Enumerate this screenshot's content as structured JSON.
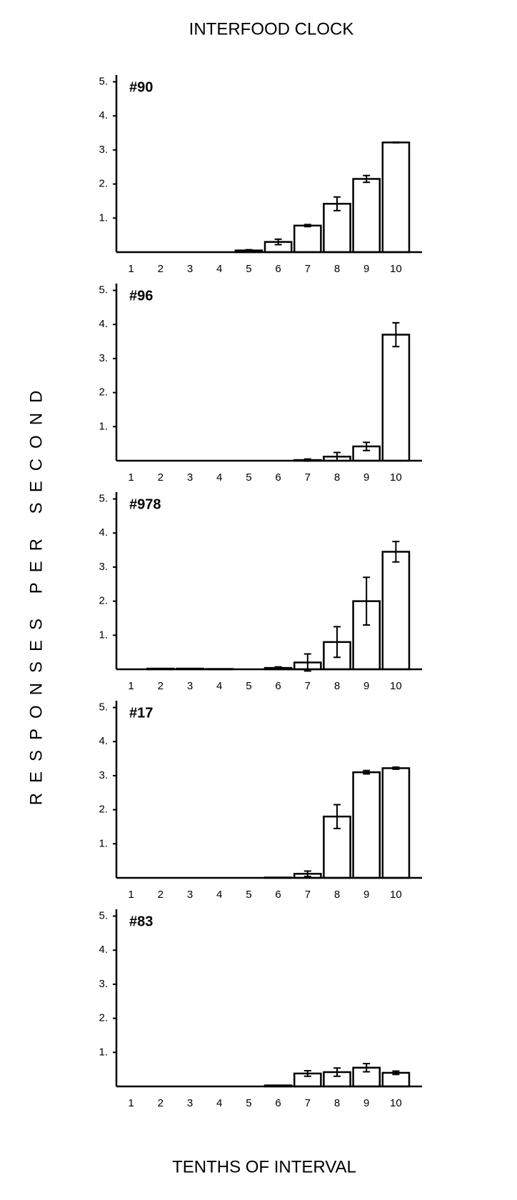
{
  "title": "INTERFOOD CLOCK",
  "ylabel": "RESPONSES PER SECOND",
  "xlabel": "TENTHS OF INTERVAL",
  "chart_data": [
    {
      "type": "bar",
      "label": "#90",
      "categories": [
        "1",
        "2",
        "3",
        "4",
        "5",
        "6",
        "7",
        "8",
        "9",
        "10"
      ],
      "values": [
        0,
        0,
        0,
        0,
        0.05,
        0.3,
        0.78,
        1.42,
        2.15,
        3.22
      ],
      "errors": [
        0,
        0,
        0,
        0,
        0.02,
        0.08,
        0.03,
        0.2,
        0.1,
        0.01
      ],
      "ylim": [
        0,
        5.2
      ],
      "yticks": [
        {
          "value": 1,
          "label": "1."
        },
        {
          "value": 2,
          "label": "2."
        },
        {
          "value": 3,
          "label": "3."
        },
        {
          "value": 4,
          "label": "4."
        },
        {
          "value": 5,
          "label": "5."
        }
      ]
    },
    {
      "type": "bar",
      "label": "#96",
      "categories": [
        "1",
        "2",
        "3",
        "4",
        "5",
        "6",
        "7",
        "8",
        "9",
        "10"
      ],
      "values": [
        0,
        0,
        0,
        0,
        0,
        0,
        0.02,
        0.12,
        0.42,
        3.7
      ],
      "errors": [
        0,
        0,
        0,
        0,
        0,
        0,
        0.03,
        0.12,
        0.12,
        0.35
      ],
      "ylim": [
        0,
        5.2
      ],
      "yticks": [
        {
          "value": 1,
          "label": "1."
        },
        {
          "value": 2,
          "label": "2."
        },
        {
          "value": 3,
          "label": "3."
        },
        {
          "value": 4,
          "label": "4."
        },
        {
          "value": 5,
          "label": "5."
        }
      ]
    },
    {
      "type": "bar",
      "label": "#978",
      "categories": [
        "1",
        "2",
        "3",
        "4",
        "5",
        "6",
        "7",
        "8",
        "9",
        "10"
      ],
      "values": [
        0,
        0.02,
        0.02,
        0.01,
        0,
        0.04,
        0.2,
        0.8,
        2.0,
        3.45
      ],
      "errors": [
        0,
        0,
        0,
        0,
        0,
        0.03,
        0.25,
        0.45,
        0.7,
        0.3
      ],
      "ylim": [
        0,
        5.2
      ],
      "yticks": [
        {
          "value": 1,
          "label": "1."
        },
        {
          "value": 2,
          "label": "2."
        },
        {
          "value": 3,
          "label": "3."
        },
        {
          "value": 4,
          "label": "4."
        },
        {
          "value": 5,
          "label": "5."
        }
      ]
    },
    {
      "type": "bar",
      "label": "#17",
      "categories": [
        "1",
        "2",
        "3",
        "4",
        "5",
        "6",
        "7",
        "8",
        "9",
        "10"
      ],
      "values": [
        0,
        0,
        0,
        0,
        0,
        0.01,
        0.12,
        1.8,
        3.1,
        3.22
      ],
      "errors": [
        0,
        0,
        0,
        0,
        0,
        0,
        0.08,
        0.35,
        0.05,
        0.03
      ],
      "ylim": [
        0,
        5.2
      ],
      "yticks": [
        {
          "value": 1,
          "label": "1."
        },
        {
          "value": 2,
          "label": "2."
        },
        {
          "value": 3,
          "label": "3."
        },
        {
          "value": 4,
          "label": "4."
        },
        {
          "value": 5,
          "label": "5."
        }
      ]
    },
    {
      "type": "bar",
      "label": "#83",
      "categories": [
        "1",
        "2",
        "3",
        "4",
        "5",
        "6",
        "7",
        "8",
        "9",
        "10"
      ],
      "values": [
        0,
        0,
        0,
        0,
        0,
        0.03,
        0.38,
        0.42,
        0.55,
        0.4
      ],
      "errors": [
        0,
        0,
        0,
        0,
        0,
        0,
        0.08,
        0.12,
        0.12,
        0.05
      ],
      "ylim": [
        0,
        5.2
      ],
      "yticks": [
        {
          "value": 1,
          "label": "1."
        },
        {
          "value": 2,
          "label": "2."
        },
        {
          "value": 3,
          "label": "3."
        },
        {
          "value": 4,
          "label": "4."
        },
        {
          "value": 5,
          "label": "5."
        }
      ]
    }
  ]
}
